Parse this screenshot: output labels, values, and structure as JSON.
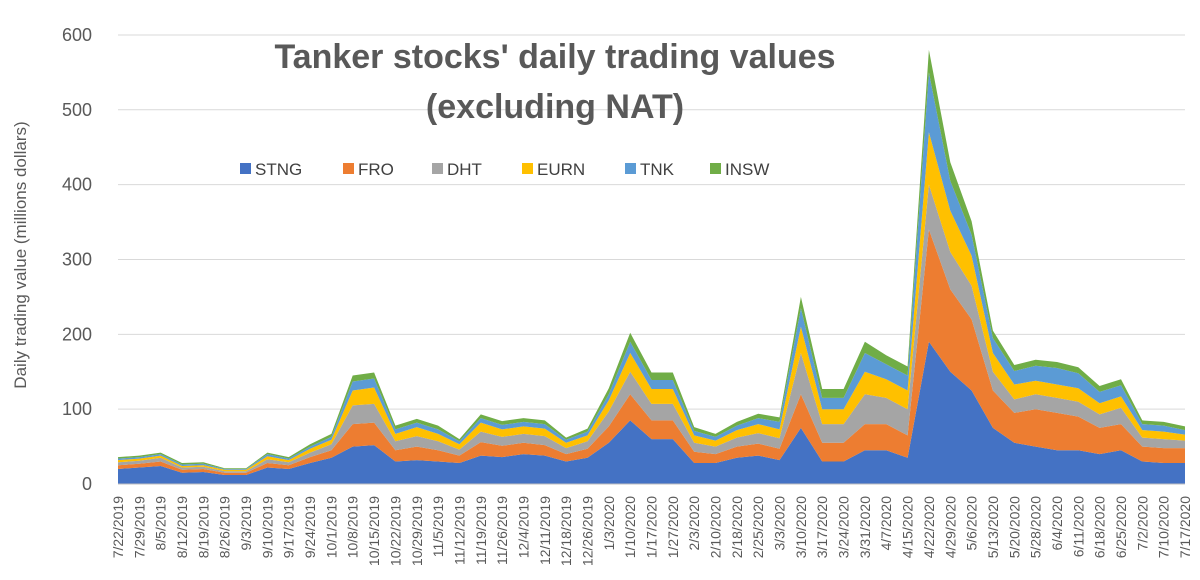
{
  "chart_data": {
    "type": "area",
    "stacked": true,
    "title_line1": "Tanker stocks' daily trading values",
    "title_line2": "(excluding NAT)",
    "xlabel": "",
    "ylabel": "Daily trading value (millions dollars)",
    "ylim": [
      0,
      620
    ],
    "yticks": [
      0,
      100,
      200,
      300,
      400,
      500,
      600
    ],
    "grid": "horizontal",
    "legend_position": "top-left",
    "x": [
      "7/22/2019",
      "7/29/2019",
      "8/5/2019",
      "8/12/2019",
      "8/19/2019",
      "8/26/2019",
      "9/3/2019",
      "9/10/2019",
      "9/17/2019",
      "9/24/2019",
      "10/1/2019",
      "10/8/2019",
      "10/15/2019",
      "10/22/2019",
      "10/29/2019",
      "11/5/2019",
      "11/12/2019",
      "11/19/2019",
      "11/26/2019",
      "12/4/2019",
      "12/11/2019",
      "12/18/2019",
      "12/26/2019",
      "1/3/2020",
      "1/10/2020",
      "1/17/2020",
      "1/27/2020",
      "2/3/2020",
      "2/10/2020",
      "2/18/2020",
      "2/25/2020",
      "3/3/2020",
      "3/10/2020",
      "3/17/2020",
      "3/24/2020",
      "3/31/2020",
      "4/7/2020",
      "4/15/2020",
      "4/22/2020",
      "4/29/2020",
      "5/6/2020",
      "5/13/2020",
      "5/20/2020",
      "5/28/2020",
      "6/4/2020",
      "6/11/2020",
      "6/18/2020",
      "6/25/2020",
      "7/2/2020",
      "7/10/2020",
      "7/17/2020"
    ],
    "series": [
      {
        "name": "STNG",
        "color": "#4472C4",
        "values": [
          20,
          22,
          24,
          15,
          16,
          12,
          12,
          22,
          20,
          28,
          35,
          50,
          52,
          30,
          32,
          30,
          28,
          38,
          36,
          40,
          38,
          30,
          35,
          55,
          85,
          60,
          60,
          28,
          28,
          35,
          38,
          32,
          75,
          30,
          30,
          45,
          45,
          35,
          190,
          150,
          125,
          75,
          55,
          50,
          45,
          45,
          40,
          45,
          30,
          28,
          28
        ]
      },
      {
        "name": "FRO",
        "color": "#ED7D31",
        "values": [
          5,
          5,
          6,
          4,
          4,
          3,
          3,
          6,
          5,
          8,
          10,
          30,
          30,
          15,
          18,
          15,
          10,
          18,
          15,
          15,
          14,
          10,
          12,
          22,
          35,
          25,
          25,
          15,
          12,
          15,
          16,
          15,
          45,
          25,
          25,
          35,
          35,
          30,
          150,
          110,
          95,
          50,
          40,
          50,
          50,
          45,
          35,
          35,
          20,
          20,
          20
        ]
      },
      {
        "name": "DHT",
        "color": "#A5A5A5",
        "values": [
          4,
          4,
          5,
          3,
          3,
          2,
          2,
          5,
          4,
          6,
          8,
          25,
          25,
          12,
          14,
          12,
          8,
          14,
          12,
          12,
          12,
          8,
          10,
          20,
          30,
          22,
          22,
          12,
          10,
          12,
          14,
          14,
          55,
          25,
          25,
          40,
          35,
          35,
          60,
          50,
          45,
          25,
          18,
          20,
          20,
          20,
          18,
          22,
          12,
          12,
          10
        ]
      },
      {
        "name": "EURN",
        "color": "#FFC000",
        "values": [
          3,
          3,
          3,
          2,
          2,
          2,
          2,
          4,
          3,
          5,
          6,
          20,
          22,
          10,
          12,
          10,
          7,
          12,
          10,
          10,
          10,
          7,
          8,
          15,
          25,
          20,
          20,
          10,
          8,
          10,
          12,
          12,
          35,
          20,
          20,
          30,
          25,
          25,
          70,
          55,
          40,
          25,
          20,
          18,
          18,
          18,
          15,
          15,
          10,
          10,
          8
        ]
      },
      {
        "name": "TNK",
        "color": "#5B9BD5",
        "values": [
          2,
          2,
          2,
          2,
          2,
          1,
          1,
          3,
          2,
          3,
          4,
          12,
          12,
          6,
          6,
          6,
          4,
          6,
          6,
          6,
          6,
          4,
          5,
          8,
          15,
          12,
          12,
          6,
          5,
          6,
          8,
          10,
          25,
          15,
          15,
          25,
          20,
          20,
          80,
          40,
          28,
          20,
          18,
          20,
          22,
          20,
          15,
          15,
          8,
          8,
          6
        ]
      },
      {
        "name": "INSW",
        "color": "#70AD47",
        "values": [
          2,
          2,
          2,
          2,
          2,
          1,
          1,
          2,
          2,
          3,
          4,
          8,
          8,
          5,
          5,
          5,
          3,
          5,
          5,
          5,
          5,
          3,
          4,
          8,
          12,
          10,
          10,
          5,
          4,
          5,
          6,
          6,
          15,
          12,
          12,
          15,
          12,
          12,
          30,
          25,
          18,
          10,
          8,
          8,
          8,
          8,
          8,
          8,
          5,
          5,
          5
        ]
      }
    ]
  }
}
